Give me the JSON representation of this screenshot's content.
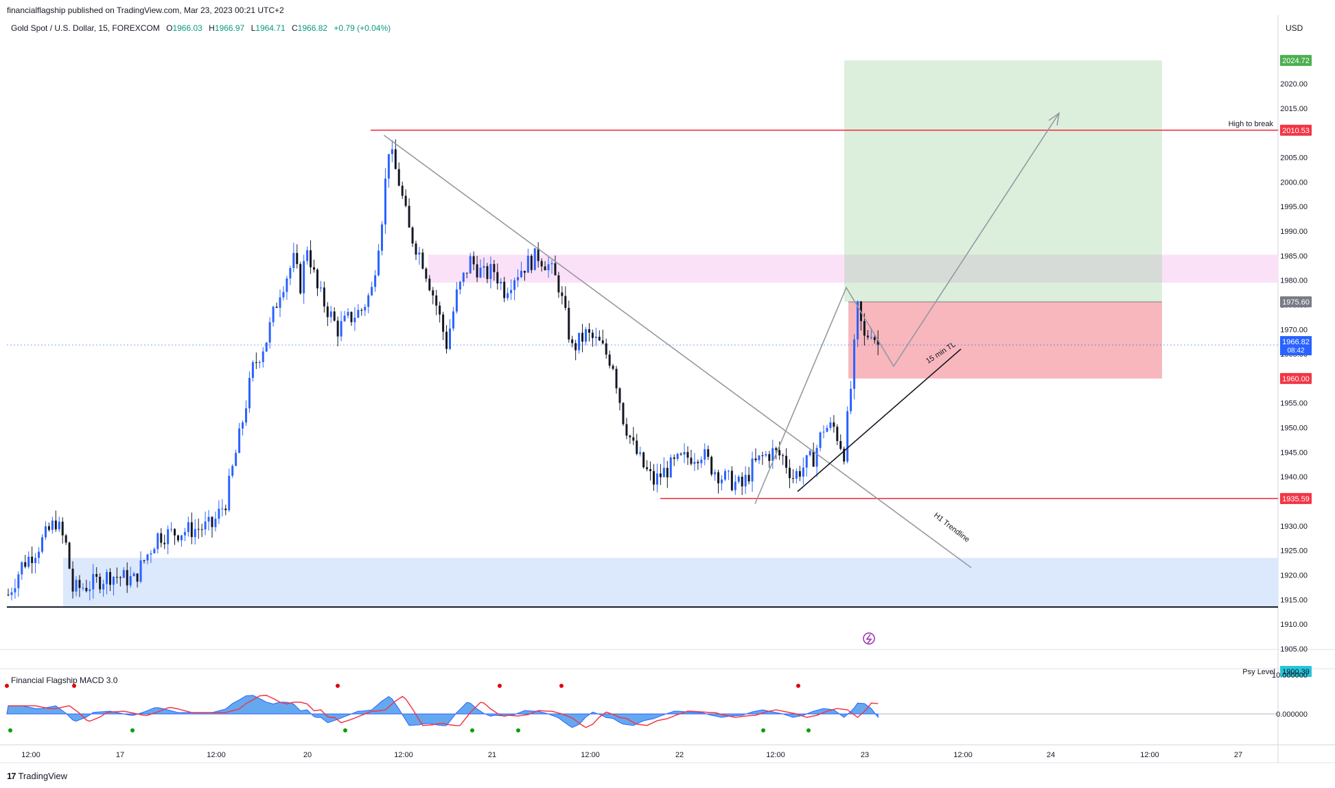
{
  "header": {
    "published_by": "financialflagship published on TradingView.com, Mar 23, 2023 00:21 UTC+2"
  },
  "legend": {
    "symbol": "Gold Spot / U.S. Dollar, 15, FOREXCOM",
    "o_label": "O",
    "o_value": "1966.03",
    "h_label": "H",
    "h_value": "1966.97",
    "l_label": "L",
    "l_value": "1964.71",
    "c_label": "C",
    "c_value": "1966.82",
    "change": "+0.79 (+0.04%)"
  },
  "currency": "USD",
  "indicator": {
    "name": "Financial Flagship MACD 3.0",
    "ticks": [
      "10.000000",
      "0.000000"
    ]
  },
  "footer": {
    "brand": "TradingView"
  },
  "colors": {
    "up": "#2962ff",
    "down": "#131722",
    "resistance": "#f23645",
    "support_zone": "#dce8fb",
    "supply_zone": "#fbe1f7",
    "target_zone": "#dcefdc",
    "stop_zone": "#f7b7bd",
    "psy": "#26c6da",
    "target_label": "#4caf50",
    "entry_label": "#787b86"
  },
  "chart_data": {
    "type": "candlestick",
    "symbol": "XAUUSD",
    "timeframe": "15",
    "ylim": [
      1900,
      2030
    ],
    "y_ticks": [
      1905,
      1910,
      1915,
      1920,
      1925,
      1930,
      1935,
      1940,
      1945,
      1950,
      1955,
      1960,
      1965,
      1970,
      1975,
      1980,
      1985,
      1990,
      1995,
      2000,
      2005,
      2010,
      2015,
      2020
    ],
    "x_ticks": [
      "12:00",
      "17",
      "12:00",
      "20",
      "12:00",
      "21",
      "12:00",
      "22",
      "12:00",
      "23",
      "12:00",
      "24",
      "12:00",
      "27"
    ],
    "last_price": 1966.82,
    "countdown": "08:42",
    "price_path": [
      [
        0,
        1916
      ],
      [
        4,
        1922
      ],
      [
        8,
        1925
      ],
      [
        14,
        1931
      ],
      [
        17,
        1926
      ],
      [
        19,
        1917
      ],
      [
        24,
        1918
      ],
      [
        30,
        1920
      ],
      [
        37,
        1919
      ],
      [
        40,
        1923
      ],
      [
        44,
        1928
      ],
      [
        52,
        1929
      ],
      [
        60,
        1930
      ],
      [
        64,
        1935
      ],
      [
        68,
        1948
      ],
      [
        72,
        1962
      ],
      [
        76,
        1968
      ],
      [
        80,
        1978
      ],
      [
        84,
        1984
      ],
      [
        86,
        1979
      ],
      [
        88,
        1987
      ],
      [
        91,
        1978
      ],
      [
        94,
        1974
      ],
      [
        97,
        1970
      ],
      [
        100,
        1972
      ],
      [
        104,
        1974
      ],
      [
        107,
        1978
      ],
      [
        110,
        1993
      ],
      [
        112,
        2007
      ],
      [
        115,
        2000
      ],
      [
        118,
        1990
      ],
      [
        122,
        1984
      ],
      [
        126,
        1975
      ],
      [
        129,
        1967
      ],
      [
        132,
        1977
      ],
      [
        136,
        1984
      ],
      [
        140,
        1981
      ],
      [
        143,
        1982
      ],
      [
        146,
        1978
      ],
      [
        149,
        1981
      ],
      [
        152,
        1983
      ],
      [
        156,
        1985
      ],
      [
        159,
        1983
      ],
      [
        162,
        1979
      ],
      [
        166,
        1966
      ],
      [
        170,
        1969
      ],
      [
        174,
        1967
      ],
      [
        178,
        1963
      ],
      [
        181,
        1952
      ],
      [
        184,
        1946
      ],
      [
        187,
        1942
      ],
      [
        190,
        1939
      ],
      [
        193,
        1941
      ],
      [
        197,
        1943
      ],
      [
        200,
        1944
      ],
      [
        204,
        1945
      ],
      [
        207,
        1942
      ],
      [
        210,
        1940
      ],
      [
        213,
        1939
      ],
      [
        216,
        1938
      ],
      [
        219,
        1942
      ],
      [
        222,
        1944
      ],
      [
        225,
        1945
      ],
      [
        228,
        1944
      ],
      [
        231,
        1940
      ],
      [
        234,
        1942
      ],
      [
        237,
        1944
      ],
      [
        240,
        1950
      ],
      [
        243,
        1950
      ],
      [
        246,
        1945
      ],
      [
        248,
        1958
      ],
      [
        250,
        1974
      ],
      [
        252,
        1968
      ],
      [
        254,
        1970
      ],
      [
        256,
        1966.82
      ]
    ],
    "annotations": {
      "high_to_break": {
        "label": "High to break",
        "price": "2010.53",
        "value": 2010.53
      },
      "target": {
        "price": "2024.72",
        "value": 2024.72
      },
      "entry": {
        "price": "1975.60",
        "value": 1975.6
      },
      "stop": {
        "price": "1960.00",
        "value": 1960.0
      },
      "low_line": {
        "price": "1935.59",
        "value": 1935.59
      },
      "psy_level": {
        "label": "Psy Level",
        "price": "1900.39",
        "value": 1900.39
      },
      "supply_zone": [
        1979.5,
        1985.2
      ],
      "demand_zone": [
        1913.5,
        1923.5
      ],
      "support_line": 1913.5,
      "h1_trendline_label": "H1 Trendline",
      "tl_15min_label": "15 min TL"
    }
  }
}
